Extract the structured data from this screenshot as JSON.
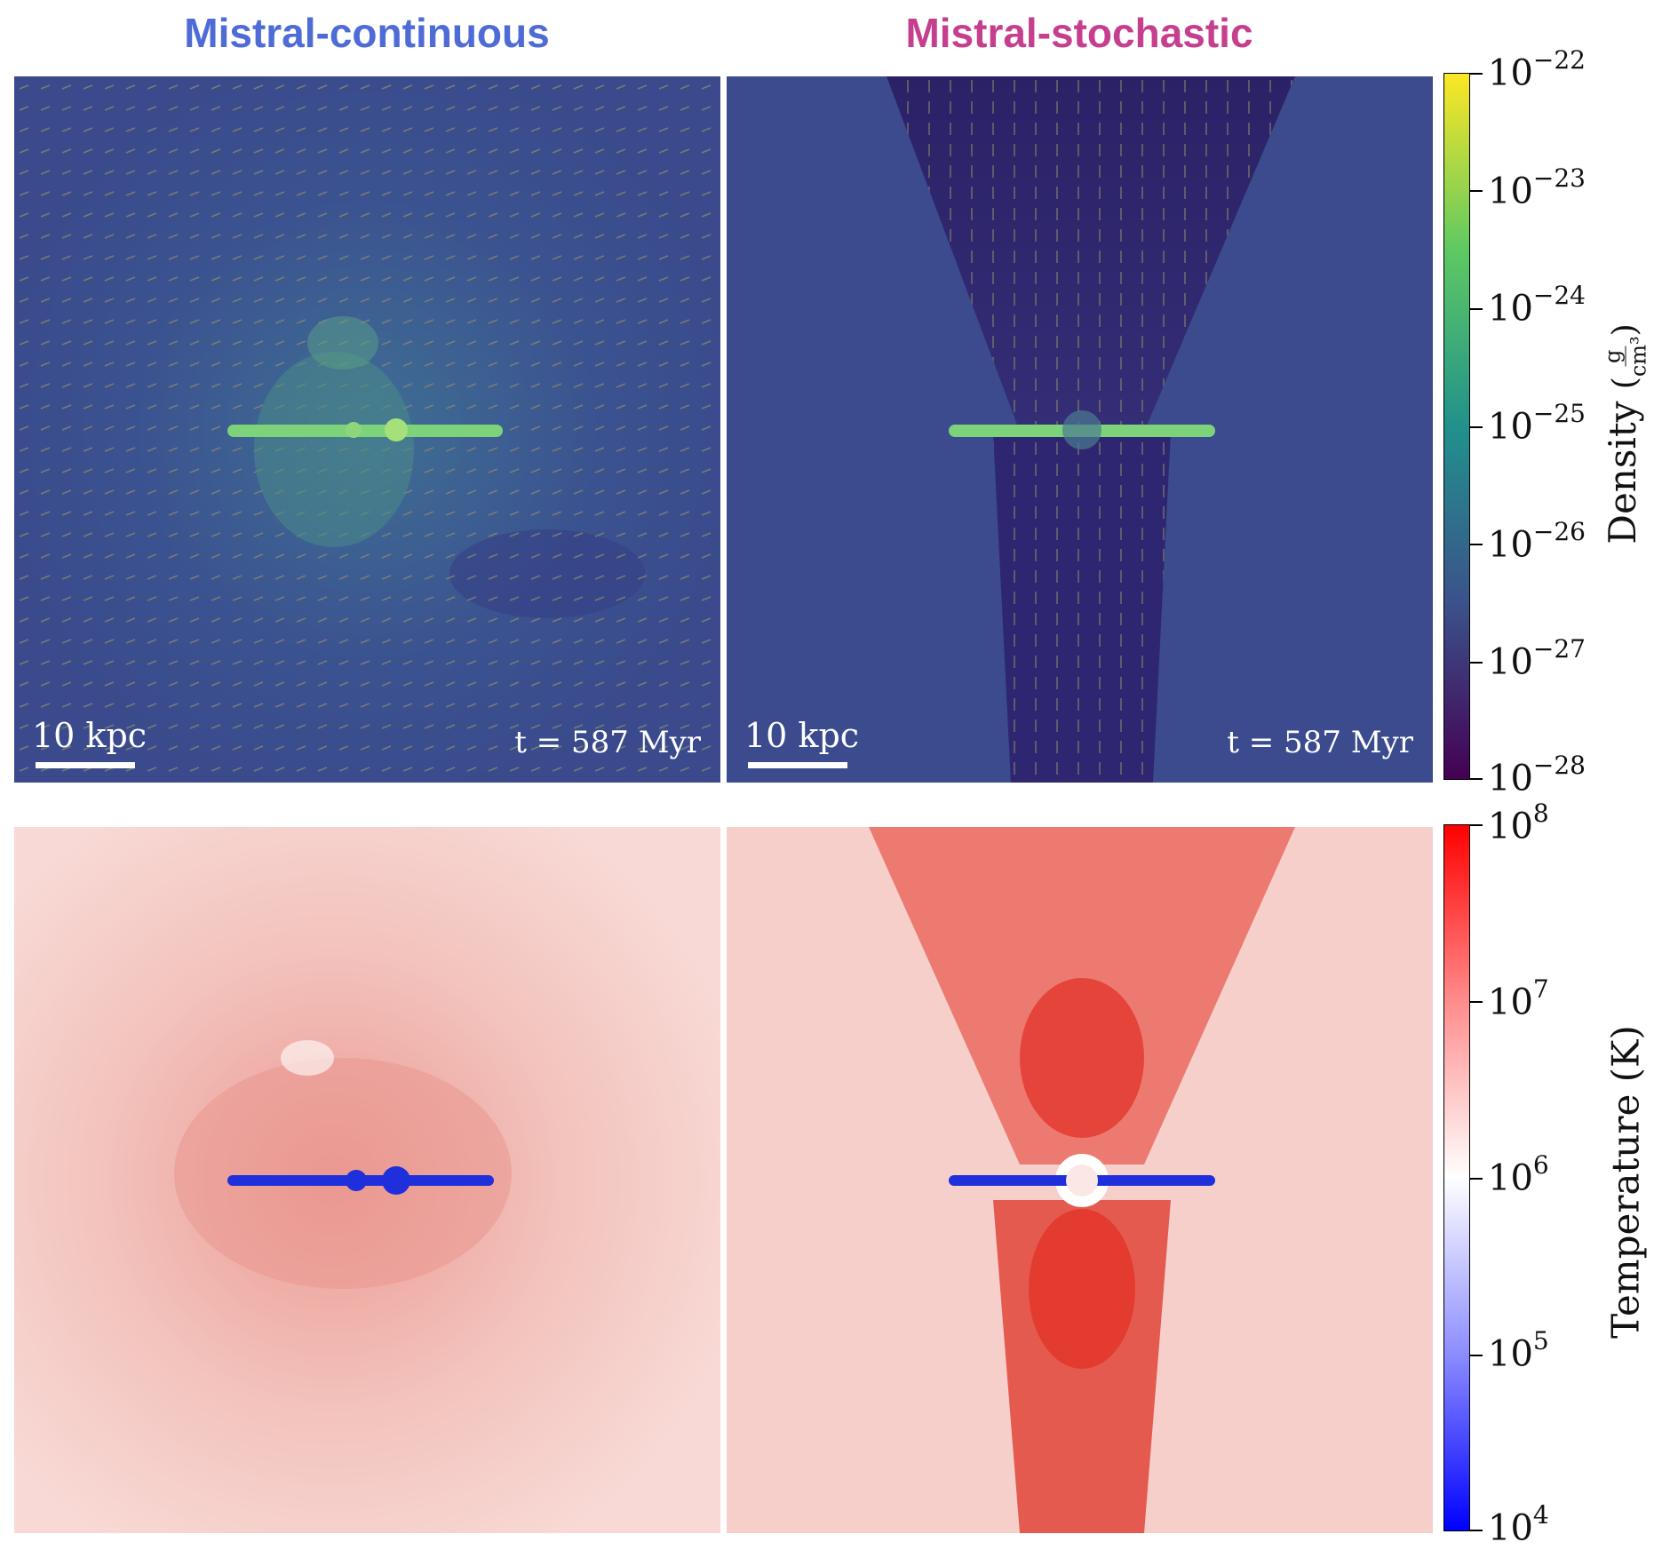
{
  "titles": {
    "left": "Mistral-continuous",
    "right": "Mistral-stochastic",
    "left_color": "#4e6bd6",
    "right_color": "#c63f8e"
  },
  "panels": {
    "scale_label": "10 kpc",
    "time_label": "t = 587 Myr"
  },
  "density_colorbar": {
    "label": "Density",
    "unit_num": "g",
    "unit_den": "cm³",
    "ticks": [
      "10",
      "10",
      "10",
      "10",
      "10",
      "10",
      "10"
    ],
    "exponents": [
      "−22",
      "−23",
      "−24",
      "−25",
      "−26",
      "−27",
      "−28"
    ]
  },
  "temperature_colorbar": {
    "label": "Temperature  (K)",
    "ticks": [
      "10",
      "10",
      "10",
      "10",
      "10"
    ],
    "exponents": [
      "8",
      "7",
      "6",
      "5",
      "4"
    ]
  },
  "colors": {
    "density_bg": "#3a4a8c",
    "density_dark": "#2a1f6a",
    "density_disk": "#7cd37a",
    "temp_bg": "#f6cfcb",
    "temp_hot": "#e33b2f",
    "temp_cold": "#1f2fdc"
  }
}
